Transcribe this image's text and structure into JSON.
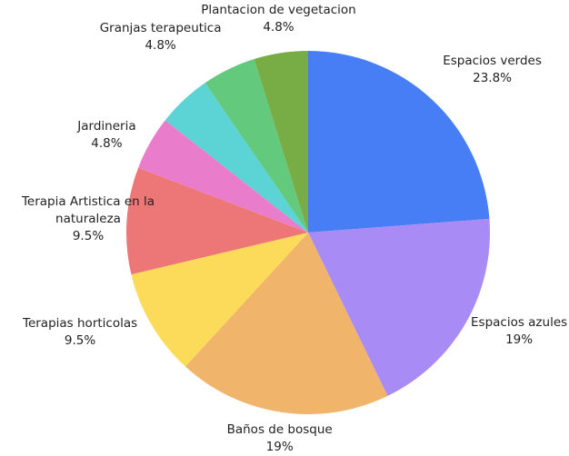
{
  "chart_data": {
    "type": "pie",
    "categories": [
      "Espacios verdes",
      "Espacios azules",
      "Baños de bosque",
      "Terapias horticolas",
      "Terapia Artistica en la naturaleza",
      "Jardineria",
      null,
      "Granjas terapeutica",
      "Plantacion de vegetacion"
    ],
    "values": [
      23.8,
      19,
      19,
      9.5,
      9.5,
      4.8,
      4.8,
      4.8,
      4.8
    ],
    "value_labels": [
      "23.8%",
      "19%",
      "19%",
      "9.5%",
      "9.5%",
      "4.8%",
      null,
      "4.8%",
      "4.8%"
    ],
    "colors": [
      "#477ef5",
      "#a98bf5",
      "#f0b56a",
      "#fddb5a",
      "#ed7676",
      "#e97dcb",
      "#5cd3d5",
      "#63c97c",
      "#78ad45"
    ]
  }
}
